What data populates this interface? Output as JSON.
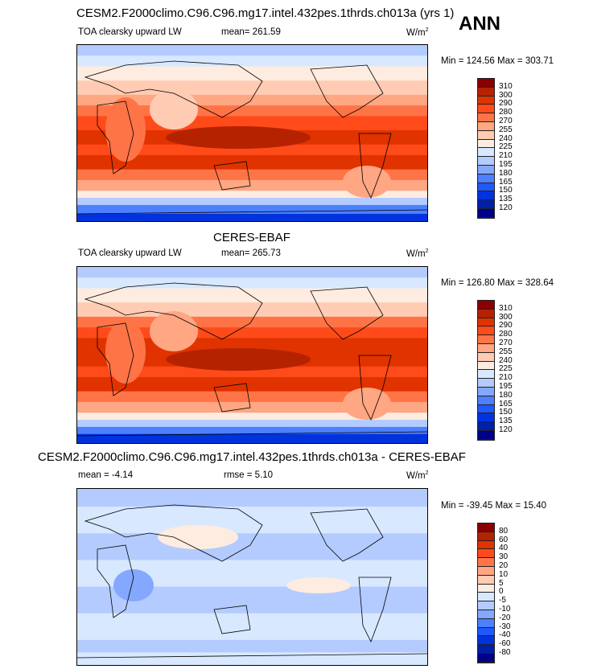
{
  "panels": [
    {
      "title": "CESM2.F2000climo.C96.C96.mg17.intel.432pes.1thrds.ch013a (yrs 1)",
      "left": "TOA clearsky upward LW",
      "mean": "mean= 261.59",
      "units": "W/m",
      "units_sup": "2",
      "minmax": "Min = 124.56 Max = 303.71",
      "levels": [
        "310",
        "300",
        "290",
        "280",
        "270",
        "255",
        "240",
        "225",
        "210",
        "195",
        "180",
        "165",
        "150",
        "135",
        "120"
      ]
    },
    {
      "title": "CERES-EBAF",
      "left": "TOA clearsky upward LW",
      "mean": "mean= 265.73",
      "units": "W/m",
      "units_sup": "2",
      "minmax": "Min = 126.80 Max = 328.64",
      "levels": [
        "310",
        "300",
        "290",
        "280",
        "270",
        "255",
        "240",
        "225",
        "210",
        "195",
        "180",
        "165",
        "150",
        "135",
        "120"
      ]
    },
    {
      "title": "CESM2.F2000climo.C96.C96.mg17.intel.432pes.1thrds.ch013a - CERES-EBAF",
      "left": "mean =  -4.14",
      "mean": "rmse =  5.10",
      "units": "W/m",
      "units_sup": "2",
      "minmax": "Min = -39.45 Max =  15.40",
      "levels": [
        "80",
        "60",
        "40",
        "30",
        "20",
        "10",
        "5",
        "0",
        "-5",
        "-10",
        "-20",
        "-30",
        "-40",
        "-60",
        "-80"
      ]
    }
  ],
  "season": "ANN",
  "colors": [
    "#8a0000",
    "#b52200",
    "#e03300",
    "#ff4a1a",
    "#ff7447",
    "#ffa683",
    "#ffcbb3",
    "#ffece0",
    "#d8e8ff",
    "#b4cbff",
    "#84a8ff",
    "#4c80ff",
    "#2058ff",
    "#0033dd",
    "#0020aa",
    "#000088"
  ],
  "chart_data": {
    "type": "heatmap",
    "title": "TOA clearsky upward LW",
    "units": "W/m2",
    "season": "ANN",
    "panels": [
      "CESM2 model",
      "CERES-EBAF",
      "model - CERES-EBAF"
    ]
  }
}
